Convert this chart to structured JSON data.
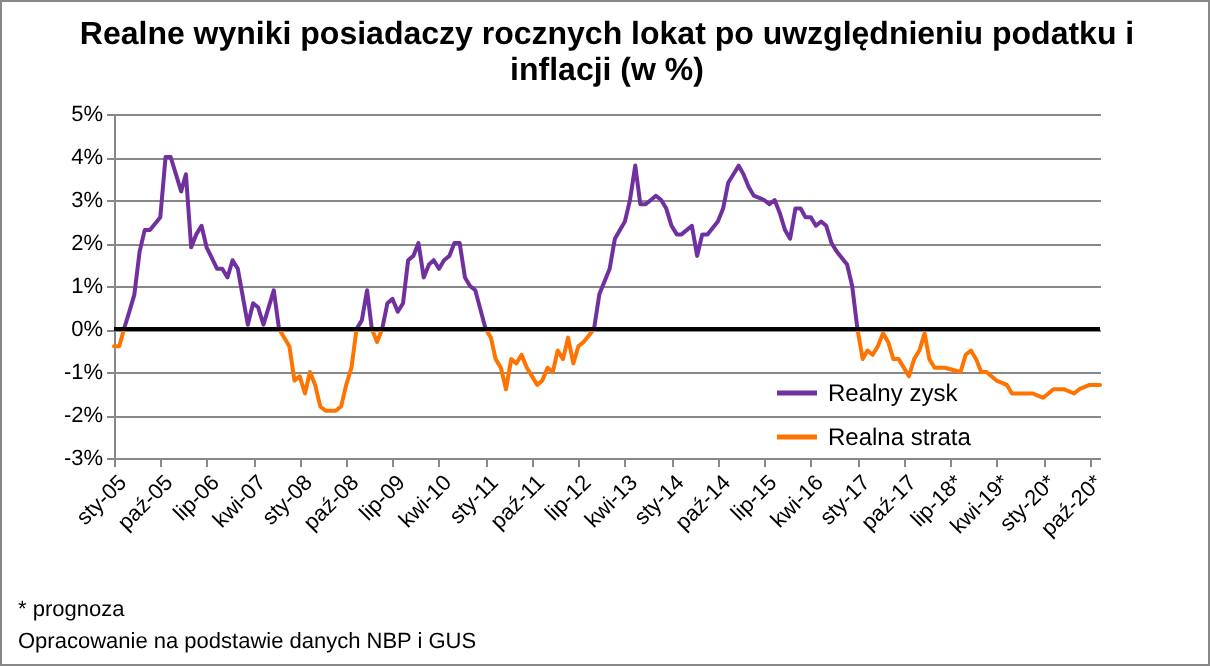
{
  "chart_data": {
    "type": "line",
    "title": "Realne wyniki posiadaczy rocznych lokat po uwzględnieniu podatku i inflacji (w %)",
    "annotations": [
      "* prognoza",
      "Opracowanie na podstawie danych NBP i GUS"
    ],
    "xlim": [
      "2005-01",
      "2020-12"
    ],
    "xticks": [
      {
        "value": "2005-01",
        "label": "sty-05"
      },
      {
        "value": "2005-10",
        "label": "paź-05"
      },
      {
        "value": "2006-07",
        "label": "lip-06"
      },
      {
        "value": "2007-04",
        "label": "kwi-07"
      },
      {
        "value": "2008-01",
        "label": "sty-08"
      },
      {
        "value": "2008-10",
        "label": "paź-08"
      },
      {
        "value": "2009-07",
        "label": "lip-09"
      },
      {
        "value": "2010-04",
        "label": "kwi-10"
      },
      {
        "value": "2011-01",
        "label": "sty-11"
      },
      {
        "value": "2011-10",
        "label": "paź-11"
      },
      {
        "value": "2012-07",
        "label": "lip-12"
      },
      {
        "value": "2013-04",
        "label": "kwi-13"
      },
      {
        "value": "2014-01",
        "label": "sty-14"
      },
      {
        "value": "2014-10",
        "label": "paź-14"
      },
      {
        "value": "2015-07",
        "label": "lip-15"
      },
      {
        "value": "2016-04",
        "label": "kwi-16"
      },
      {
        "value": "2017-01",
        "label": "sty-17"
      },
      {
        "value": "2017-10",
        "label": "paź-17"
      },
      {
        "value": "2018-07",
        "label": "lip-18*"
      },
      {
        "value": "2019-04",
        "label": "kwi-19*"
      },
      {
        "value": "2020-01",
        "label": "sty-20*"
      },
      {
        "value": "2020-10",
        "label": "paź-20*"
      }
    ],
    "ylim": [
      -3,
      5
    ],
    "yticks": [
      {
        "value": -3,
        "label": "-3%"
      },
      {
        "value": -2,
        "label": "-2%"
      },
      {
        "value": -1,
        "label": "-1%"
      },
      {
        "value": 0,
        "label": "0%"
      },
      {
        "value": 1,
        "label": "1%"
      },
      {
        "value": 2,
        "label": "2%"
      },
      {
        "value": 3,
        "label": "3%"
      },
      {
        "value": 4,
        "label": "4%"
      },
      {
        "value": 5,
        "label": "5%"
      }
    ],
    "grid": "y",
    "legend": "bottom right",
    "line_style": "solid",
    "ref_lines": [
      {
        "axis": "y",
        "value": 0,
        "color": "#000000"
      }
    ],
    "series": [
      {
        "name": "Realny zysk",
        "color": "#7030a0",
        "x": [
          "2005-03",
          "2005-04",
          "2005-05",
          "2005-06",
          "2005-07",
          "2005-08",
          "2005-10",
          "2005-11",
          "2005-12",
          "2006-01",
          "2006-02",
          "2006-03",
          "2006-04",
          "2006-05",
          "2006-06",
          "2006-07",
          "2006-09",
          "2006-10",
          "2006-11",
          "2006-12",
          "2007-01",
          "2007-03",
          "2007-04",
          "2007-05",
          "2007-06",
          "2007-08",
          "2007-09",
          "2007-10",
          "2008-12",
          "2009-01",
          "2009-02",
          "2009-03",
          "2009-04",
          "2009-05",
          "2009-06",
          "2009-07",
          "2009-08",
          "2009-09",
          "2009-10",
          "2009-11",
          "2009-12",
          "2010-01",
          "2010-02",
          "2010-03",
          "2010-04",
          "2010-05",
          "2010-06",
          "2010-07",
          "2010-08",
          "2010-09",
          "2010-10",
          "2010-11",
          "2011-01",
          "2011-02",
          "2012-10",
          "2012-11",
          "2013-01",
          "2013-02",
          "2013-04",
          "2013-05",
          "2013-06",
          "2013-07",
          "2013-08",
          "2013-09",
          "2013-10",
          "2013-11",
          "2013-12",
          "2014-01",
          "2014-02",
          "2014-03",
          "2014-05",
          "2014-06",
          "2014-07",
          "2014-08",
          "2014-10",
          "2014-11",
          "2014-12",
          "2015-01",
          "2015-02",
          "2015-03",
          "2015-04",
          "2015-05",
          "2015-07",
          "2015-08",
          "2015-09",
          "2015-10",
          "2015-11",
          "2015-12",
          "2016-01",
          "2016-02",
          "2016-03",
          "2016-04",
          "2016-05",
          "2016-06",
          "2016-07",
          "2016-08",
          "2016-09",
          "2016-11",
          "2016-12",
          "2017-01"
        ],
        "values": [
          0,
          0.4,
          0.8,
          1.8,
          2.3,
          2.3,
          2.6,
          4.0,
          4.0,
          3.6,
          3.2,
          3.6,
          1.9,
          2.2,
          2.4,
          1.9,
          1.4,
          1.4,
          1.2,
          1.6,
          1.4,
          0.1,
          0.6,
          0.5,
          0.1,
          0.9,
          0,
          null,
          0,
          0.2,
          0.9,
          0,
          null,
          0,
          0.6,
          0.7,
          0.4,
          0.6,
          1.6,
          1.7,
          2.0,
          1.2,
          1.5,
          1.6,
          1.4,
          1.6,
          1.7,
          2.0,
          2.0,
          1.2,
          1.0,
          0.9,
          0,
          null,
          0,
          0.8,
          1.4,
          2.1,
          2.5,
          3.0,
          3.8,
          2.9,
          2.9,
          3.0,
          3.1,
          3.0,
          2.8,
          2.4,
          2.2,
          2.2,
          2.4,
          1.7,
          2.2,
          2.2,
          2.5,
          2.8,
          3.4,
          3.6,
          3.8,
          3.6,
          3.3,
          3.1,
          3.0,
          2.9,
          3.0,
          2.7,
          2.3,
          2.1,
          2.8,
          2.8,
          2.6,
          2.6,
          2.4,
          2.5,
          2.4,
          2.0,
          1.8,
          1.5,
          1.0,
          0
        ]
      },
      {
        "name": "Realna strata",
        "color": "#ff7300",
        "x": [
          "2005-01",
          "2005-02",
          "2005-03",
          "2005-04",
          "2007-09",
          "2007-11",
          "2007-12",
          "2008-01",
          "2008-02",
          "2008-03",
          "2008-04",
          "2008-05",
          "2008-06",
          "2008-08",
          "2008-09",
          "2008-10",
          "2008-11",
          "2008-12",
          "2009-01",
          "2009-03",
          "2009-04",
          "2009-05",
          "2009-06",
          "2011-01",
          "2011-02",
          "2011-03",
          "2011-04",
          "2011-05",
          "2011-06",
          "2011-07",
          "2011-08",
          "2011-09",
          "2011-11",
          "2011-12",
          "2012-01",
          "2012-02",
          "2012-03",
          "2012-04",
          "2012-05",
          "2012-06",
          "2012-07",
          "2012-08",
          "2012-10",
          "2012-11",
          "2017-01",
          "2017-02",
          "2017-03",
          "2017-04",
          "2017-05",
          "2017-06",
          "2017-07",
          "2017-08",
          "2017-09",
          "2017-11",
          "2017-12",
          "2018-01",
          "2018-02",
          "2018-03",
          "2018-04",
          "2018-06",
          "2018-09",
          "2018-10",
          "2018-11",
          "2018-12",
          "2019-01",
          "2019-02",
          "2019-04",
          "2019-06",
          "2019-07",
          "2019-09",
          "2019-11",
          "2020-01",
          "2020-02",
          "2020-03",
          "2020-05",
          "2020-07",
          "2020-08",
          "2020-10",
          "2020-12"
        ],
        "values": [
          -0.4,
          -0.4,
          0,
          null,
          0,
          -0.4,
          -1.2,
          -1.1,
          -1.5,
          -1.0,
          -1.3,
          -1.8,
          -1.9,
          -1.9,
          -1.8,
          -1.3,
          -0.9,
          0,
          null,
          0,
          -0.3,
          0,
          null,
          0,
          -0.2,
          -0.7,
          -0.9,
          -1.4,
          -0.7,
          -0.8,
          -0.6,
          -0.9,
          -1.3,
          -1.2,
          -0.9,
          -1.0,
          -0.5,
          -0.7,
          -0.2,
          -0.8,
          -0.4,
          -0.3,
          0,
          null,
          0,
          -0.7,
          -0.5,
          -0.6,
          -0.4,
          -0.1,
          -0.3,
          -0.7,
          -0.7,
          -1.1,
          -0.7,
          -0.5,
          -0.1,
          -0.7,
          -0.9,
          -0.9,
          -1.0,
          -0.6,
          -0.5,
          -0.7,
          -1.0,
          -1.0,
          -1.2,
          -1.3,
          -1.5,
          -1.5,
          -1.5,
          -1.6,
          -1.5,
          -1.4,
          -1.4,
          -1.5,
          -1.4,
          -1.3,
          -1.3
        ]
      }
    ]
  }
}
